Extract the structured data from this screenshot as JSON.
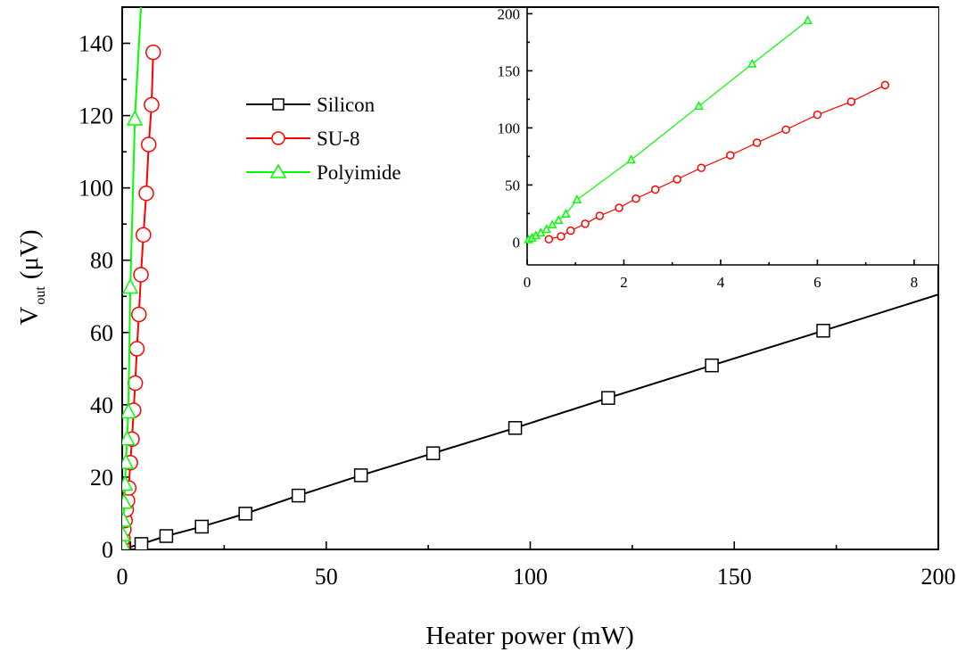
{
  "chart_data": [
    {
      "type": "line",
      "xlabel": "Heater power (mW)",
      "ylabel": "V_out (μV)",
      "ylabel_main": "V",
      "ylabel_sub": "out",
      "ylabel_unit": "(μV)",
      "xlim": [
        0,
        200
      ],
      "ylim": [
        0,
        150
      ],
      "xticks": [
        0,
        50,
        100,
        150,
        200
      ],
      "yticks": [
        0,
        20,
        40,
        60,
        80,
        100,
        120,
        140
      ],
      "xtick_labels": [
        "0",
        "50",
        "100",
        "150",
        "200"
      ],
      "ytick_labels": [
        "0",
        "20",
        "40",
        "60",
        "80",
        "100",
        "120",
        "140"
      ],
      "legend_position": "top-center",
      "series": [
        {
          "name": "Silicon",
          "color": "#000000",
          "marker": "square",
          "x": [
            0.5,
            4.7,
            10.8,
            19.5,
            30.2,
            43.2,
            58.5,
            76.2,
            96.3,
            119.1,
            144.5,
            171.8
          ],
          "y": [
            0.3,
            1.5,
            3.7,
            6.3,
            9.9,
            14.9,
            20.5,
            26.6,
            33.6,
            41.9,
            50.9,
            60.5
          ],
          "line_to": [
            200,
            70.5
          ]
        },
        {
          "name": "SU-8",
          "color": "#ff0000",
          "marker": "circle",
          "x": [
            0.05,
            0.2,
            0.4,
            0.7,
            1.0,
            1.3,
            1.6,
            2.0,
            2.4,
            2.8,
            3.2,
            3.6,
            4.1,
            4.6,
            5.2,
            5.9,
            6.5,
            7.2
          ],
          "y": [
            1.0,
            3.0,
            5.5,
            8.0,
            11.0,
            13.5,
            17.0,
            24.0,
            30.5,
            38.5,
            46.0,
            55.5,
            65.0,
            76.0,
            87.0,
            98.5,
            112.0,
            123.0
          ],
          "extra": [
            [
              7.6,
              137.5
            ]
          ]
        },
        {
          "name": "Polyimide",
          "color": "#00ff00",
          "marker": "triangle",
          "x": [
            0.05,
            0.15,
            0.3,
            0.5,
            0.7,
            0.9,
            1.2,
            1.5,
            2.0,
            3.1
          ],
          "y": [
            1.5,
            4.0,
            8.0,
            13.0,
            18.0,
            24.0,
            30.5,
            38.0,
            72.5,
            119.0
          ],
          "line_to": [
            4.6,
            150
          ]
        }
      ]
    },
    {
      "type": "line",
      "role": "inset",
      "xlim": [
        0,
        8.5
      ],
      "ylim": [
        -20,
        205
      ],
      "xticks": [
        0,
        2,
        4,
        6,
        8
      ],
      "yticks": [
        0,
        50,
        100,
        150,
        200
      ],
      "xtick_labels": [
        "0",
        "2",
        "4",
        "6",
        "8"
      ],
      "ytick_labels": [
        "0",
        "50",
        "100",
        "150",
        "200"
      ],
      "series": [
        {
          "name": "SU-8",
          "color": "#ff0000",
          "marker": "circle",
          "x": [
            0.45,
            0.7,
            0.9,
            1.2,
            1.5,
            1.9,
            2.25,
            2.65,
            3.1,
            3.6,
            4.2,
            4.75,
            5.35,
            6.0,
            6.7,
            7.4
          ],
          "y": [
            2.5,
            5.0,
            10.0,
            16.0,
            23.0,
            30.0,
            38.0,
            46.0,
            55.0,
            65.0,
            76.0,
            87.0,
            98.5,
            111.5,
            123.0,
            137.5
          ]
        },
        {
          "name": "Polyimide",
          "color": "#00ff00",
          "marker": "triangle",
          "x": [
            0.03,
            0.1,
            0.18,
            0.28,
            0.4,
            0.52,
            0.65,
            0.8,
            1.03,
            2.15,
            3.55,
            4.65,
            5.8
          ],
          "y": [
            2.0,
            3.5,
            5.5,
            8.0,
            11.0,
            15.0,
            19.0,
            24.5,
            37.0,
            72.0,
            119.0,
            156.0,
            194.0
          ]
        }
      ]
    }
  ]
}
